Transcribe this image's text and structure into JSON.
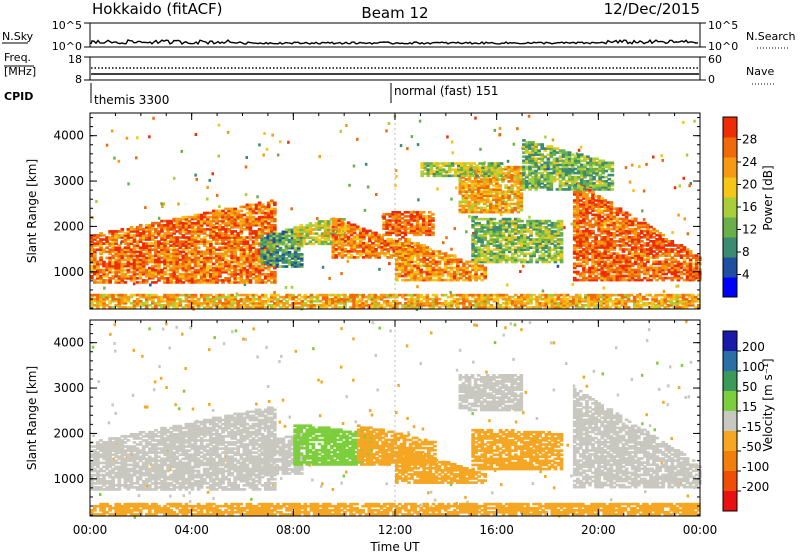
{
  "header": {
    "radar": "Hokkaido (fitACF)",
    "beam": "Beam 12",
    "date": "12/Dec/2015"
  },
  "summary": {
    "nsky_label": "N.Sky",
    "nsky_ticks": [
      "10^5",
      "10^0"
    ],
    "nsearch_label": "N.Search",
    "freq_label_line1": "Freq.",
    "freq_label_line2": "[MHz]",
    "freq_ticks": [
      "18",
      "8"
    ],
    "nave_label": "Nave",
    "nave_ticks": [
      "60",
      "0"
    ],
    "cpid_label": "CPID",
    "cpid_segments": [
      {
        "label": "themis 3300",
        "start_hour": 0
      },
      {
        "label": "normal (fast) 151",
        "start_hour": 12
      }
    ]
  },
  "colors": {
    "power": [
      "#0000ff",
      "#1f4fa0",
      "#3c8a72",
      "#6ab04a",
      "#a8cf3a",
      "#f5c518",
      "#f59a12",
      "#f06a0a",
      "#ee2c06"
    ],
    "velocity": [
      "#1a1aa8",
      "#2a6ea8",
      "#3a9a5a",
      "#7cce3c",
      "#c8c8c0",
      "#f5a623",
      "#f07f0e",
      "#f04e08",
      "#e81010"
    ],
    "ground_scatter": "#c6c6be"
  },
  "chart_data": [
    {
      "type": "heatmap",
      "panel": "power",
      "xlabel": "",
      "ylabel": "Slant Range [km]",
      "xlim": [
        0,
        24
      ],
      "ylim": [
        180,
        4500
      ],
      "x_ticks": [
        "00:00",
        "04:00",
        "08:00",
        "12:00",
        "16:00",
        "20:00",
        "00:00"
      ],
      "y_ticks": [
        1000,
        2000,
        3000,
        4000
      ],
      "colorbar": {
        "label": "Power [dB]",
        "ticks": [
          4,
          8,
          12,
          16,
          20,
          24,
          28
        ],
        "range": [
          0,
          32
        ]
      },
      "regions": [
        {
          "hour_start": 0.0,
          "hour_end": 7.3,
          "range_low": 750,
          "range_high_start": 1800,
          "range_high_end": 2600,
          "value": 26
        },
        {
          "hour_start": 6.7,
          "hour_end": 8.3,
          "range_low": 1100,
          "range_high_start": 1800,
          "range_high_end": 2000,
          "value": 10
        },
        {
          "hour_start": 8.0,
          "hour_end": 10.0,
          "range_low": 1600,
          "range_high_start": 2000,
          "range_high_end": 2200,
          "value": 17
        },
        {
          "hour_start": 9.5,
          "hour_end": 12.8,
          "range_low": 1300,
          "range_high_start": 2200,
          "range_high_end": 1500,
          "value": 25
        },
        {
          "hour_start": 12.0,
          "hour_end": 15.5,
          "range_low": 800,
          "range_high_start": 1800,
          "range_high_end": 1100,
          "value": 24
        },
        {
          "hour_start": 11.5,
          "hour_end": 13.5,
          "range_low": 1800,
          "range_high_start": 2300,
          "range_high_end": 2300,
          "value": 27
        },
        {
          "hour_start": 14.5,
          "hour_end": 17.0,
          "range_low": 2300,
          "range_high_start": 3300,
          "range_high_end": 3300,
          "value": 22
        },
        {
          "hour_start": 13.0,
          "hour_end": 16.2,
          "range_low": 3100,
          "range_high_start": 3400,
          "range_high_end": 3400,
          "value": 15
        },
        {
          "hour_start": 15.0,
          "hour_end": 18.5,
          "range_low": 1200,
          "range_high_start": 2200,
          "range_high_end": 2100,
          "value": 14
        },
        {
          "hour_start": 19.0,
          "hour_end": 24.0,
          "range_low": 800,
          "range_high_start": 3000,
          "range_high_end": 1300,
          "value": 27
        },
        {
          "hour_start": 17.0,
          "hour_end": 20.5,
          "range_low": 2800,
          "range_high_start": 3900,
          "range_high_end": 3400,
          "value": 13
        },
        {
          "hour_start": 0.0,
          "hour_end": 24.0,
          "range_low": 200,
          "range_high_start": 500,
          "range_high_end": 500,
          "value": 22
        }
      ]
    },
    {
      "type": "heatmap",
      "panel": "velocity",
      "xlabel": "Time UT",
      "ylabel": "Slant Range [km]",
      "xlim": [
        0,
        24
      ],
      "ylim": [
        180,
        4500
      ],
      "x_ticks": [
        "00:00",
        "04:00",
        "08:00",
        "12:00",
        "16:00",
        "20:00",
        "00:00"
      ],
      "y_ticks": [
        1000,
        2000,
        3000,
        4000
      ],
      "colorbar": {
        "label": "Velocity [m s⁻¹]",
        "ticks": [
          200,
          100,
          50,
          15,
          -15,
          -50,
          -100,
          -200
        ]
      },
      "regions": [
        {
          "hour_start": 0.0,
          "hour_end": 7.3,
          "range_low": 750,
          "range_high_start": 1800,
          "range_high_end": 2600,
          "value": 0
        },
        {
          "hour_start": 6.7,
          "hour_end": 8.3,
          "range_low": 1100,
          "range_high_start": 1800,
          "range_high_end": 2000,
          "value": 0
        },
        {
          "hour_start": 8.0,
          "hour_end": 11.0,
          "range_low": 1300,
          "range_high_start": 2200,
          "range_high_end": 2000,
          "value": 40
        },
        {
          "hour_start": 10.5,
          "hour_end": 13.5,
          "range_low": 1300,
          "range_high_start": 2200,
          "range_high_end": 1800,
          "value": -40
        },
        {
          "hour_start": 12.0,
          "hour_end": 15.5,
          "range_low": 900,
          "range_high_start": 1700,
          "range_high_end": 1100,
          "value": -30
        },
        {
          "hour_start": 14.5,
          "hour_end": 17.0,
          "range_low": 2500,
          "range_high_start": 3300,
          "range_high_end": 3300,
          "value": 0
        },
        {
          "hour_start": 15.0,
          "hour_end": 18.5,
          "range_low": 1200,
          "range_high_start": 2100,
          "range_high_end": 2000,
          "value": -30
        },
        {
          "hour_start": 19.0,
          "hour_end": 24.0,
          "range_low": 800,
          "range_high_start": 3000,
          "range_high_end": 1300,
          "value": 0
        },
        {
          "hour_start": 0.0,
          "hour_end": 24.0,
          "range_low": 200,
          "range_high_start": 450,
          "range_high_end": 450,
          "value": -40
        }
      ]
    }
  ]
}
